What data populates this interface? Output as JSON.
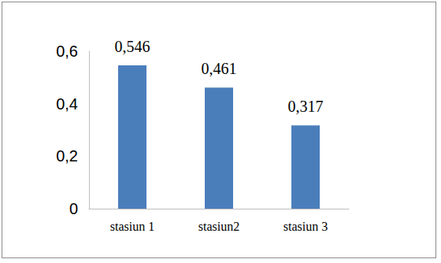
{
  "chart_data": {
    "type": "bar",
    "categories": [
      "stasiun 1",
      "stasiun2",
      "stasiun 3"
    ],
    "values": [
      0.546,
      0.461,
      0.317
    ],
    "value_labels": [
      "0,546",
      "0,461",
      "0,317"
    ],
    "color": "#4a7ebb",
    "ylim": [
      0,
      0.6
    ],
    "yticks": [
      0,
      {
        "value": 0.2,
        "label": "0,2"
      },
      {
        "value": 0.4,
        "label": "0,4"
      },
      {
        "value": 0.6,
        "label": "0,6"
      }
    ],
    "grid": false,
    "data_labels": true
  }
}
